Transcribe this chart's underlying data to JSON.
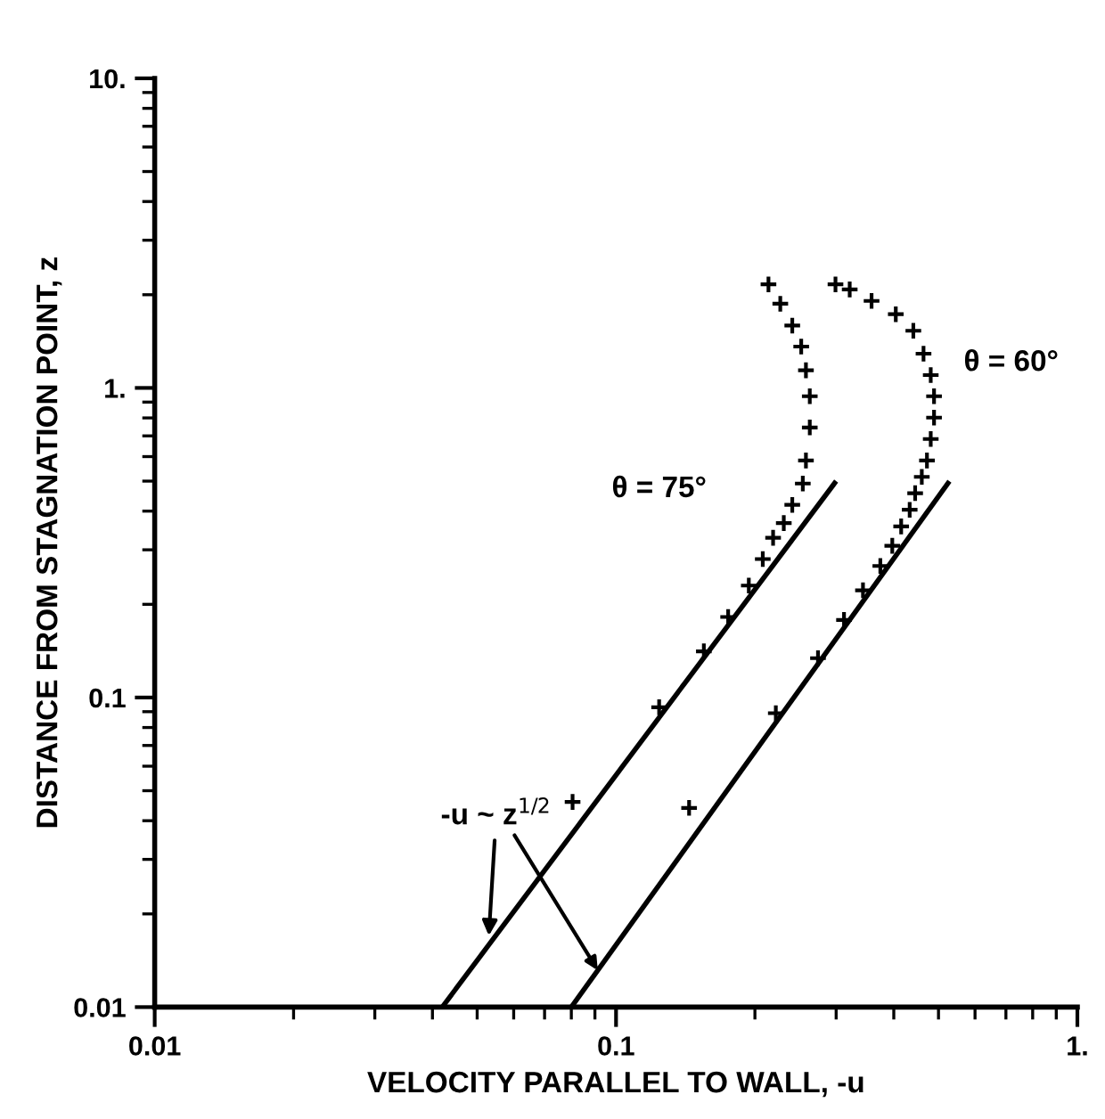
{
  "chart_data": {
    "type": "scatter",
    "xlabel": "VELOCITY PARALLEL TO WALL, -u",
    "ylabel": "DISTANCE FROM STAGNATION POINT, z",
    "log": "xy",
    "xlim": [
      0.01,
      1
    ],
    "ylim": [
      0.01,
      10
    ],
    "xticks": [
      {
        "value": 0.01,
        "label": "0.01"
      },
      {
        "value": 0.1,
        "label": "0.1"
      },
      {
        "value": 1,
        "label": "1."
      }
    ],
    "yticks": [
      {
        "value": 0.01,
        "label": "0.01"
      },
      {
        "value": 0.1,
        "label": "0.1"
      },
      {
        "value": 1,
        "label": "1."
      },
      {
        "value": 10,
        "label": "10."
      }
    ],
    "grid": false,
    "series": [
      {
        "name": "θ = 75°",
        "color": "#000000",
        "marker": "cross",
        "x": [
          0.0805,
          0.124,
          0.155,
          0.175,
          0.194,
          0.208,
          0.219,
          0.231,
          0.241,
          0.254,
          0.258,
          0.263,
          0.263,
          0.258,
          0.252,
          0.241,
          0.227,
          0.214
        ],
        "values": [
          0.046,
          0.093,
          0.141,
          0.182,
          0.23,
          0.28,
          0.328,
          0.366,
          0.419,
          0.491,
          0.583,
          0.745,
          0.94,
          1.14,
          1.36,
          1.59,
          1.87,
          2.16
        ]
      },
      {
        "name": "θ = 60°",
        "color": "#000000",
        "marker": "cross",
        "x": [
          0.144,
          0.222,
          0.274,
          0.312,
          0.343,
          0.374,
          0.397,
          0.415,
          0.433,
          0.445,
          0.46,
          0.472,
          0.481,
          0.489,
          0.489,
          0.481,
          0.464,
          0.441,
          0.404,
          0.358,
          0.321,
          0.299
        ],
        "values": [
          0.044,
          0.089,
          0.134,
          0.178,
          0.222,
          0.266,
          0.309,
          0.357,
          0.404,
          0.457,
          0.516,
          0.583,
          0.684,
          0.802,
          0.94,
          1.1,
          1.29,
          1.53,
          1.73,
          1.91,
          2.08,
          2.16
        ]
      },
      {
        "type": "line",
        "color": "#000000",
        "x": [
          0.042,
          0.3
        ],
        "values": [
          0.01,
          0.5
        ]
      },
      {
        "type": "line",
        "color": "#000000",
        "x": [
          0.08,
          0.528
        ],
        "values": [
          0.01,
          0.5
        ]
      }
    ],
    "annotations": [
      {
        "text": "-u ~ z$^{1/2}$",
        "x": 0.053,
        "y": 0.017
      }
    ]
  }
}
